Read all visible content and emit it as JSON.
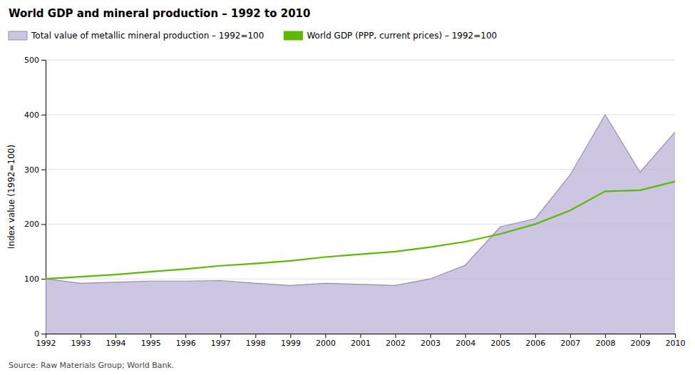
{
  "chart_data": {
    "type": "line",
    "title": "World GDP and mineral production – 1992 to 2010",
    "ylabel": "Index value (1992=100)",
    "source": "Source: Raw Materials Group; World Bank.",
    "x": [
      1992,
      1993,
      1994,
      1995,
      1996,
      1997,
      1998,
      1999,
      2000,
      2001,
      2002,
      2003,
      2004,
      2005,
      2006,
      2007,
      2008,
      2009,
      2010
    ],
    "xlim": [
      1992,
      2010
    ],
    "xticks": [
      1992,
      1993,
      1994,
      1995,
      1996,
      1997,
      1998,
      1999,
      2000,
      2001,
      2002,
      2003,
      2004,
      2005,
      2006,
      2007,
      2008,
      2009,
      2010
    ],
    "ylim": [
      0,
      500
    ],
    "yticks": [
      0,
      100,
      200,
      300,
      400,
      500
    ],
    "grid": true,
    "legend": "top-left",
    "series": [
      {
        "name": "Total value of metallic mineral production – 1992=100",
        "type": "area",
        "color": "#b8aed4",
        "values": [
          100,
          92,
          94,
          96,
          96,
          97,
          92,
          88,
          92,
          90,
          88,
          100,
          125,
          195,
          210,
          290,
          400,
          295,
          368
        ]
      },
      {
        "name": "World GDP (PPP, current prices) – 1992=100",
        "type": "line",
        "color": "#5cb800",
        "values": [
          100,
          104,
          108,
          113,
          118,
          124,
          128,
          133,
          140,
          145,
          150,
          158,
          168,
          182,
          200,
          225,
          260,
          262,
          278
        ]
      }
    ]
  }
}
